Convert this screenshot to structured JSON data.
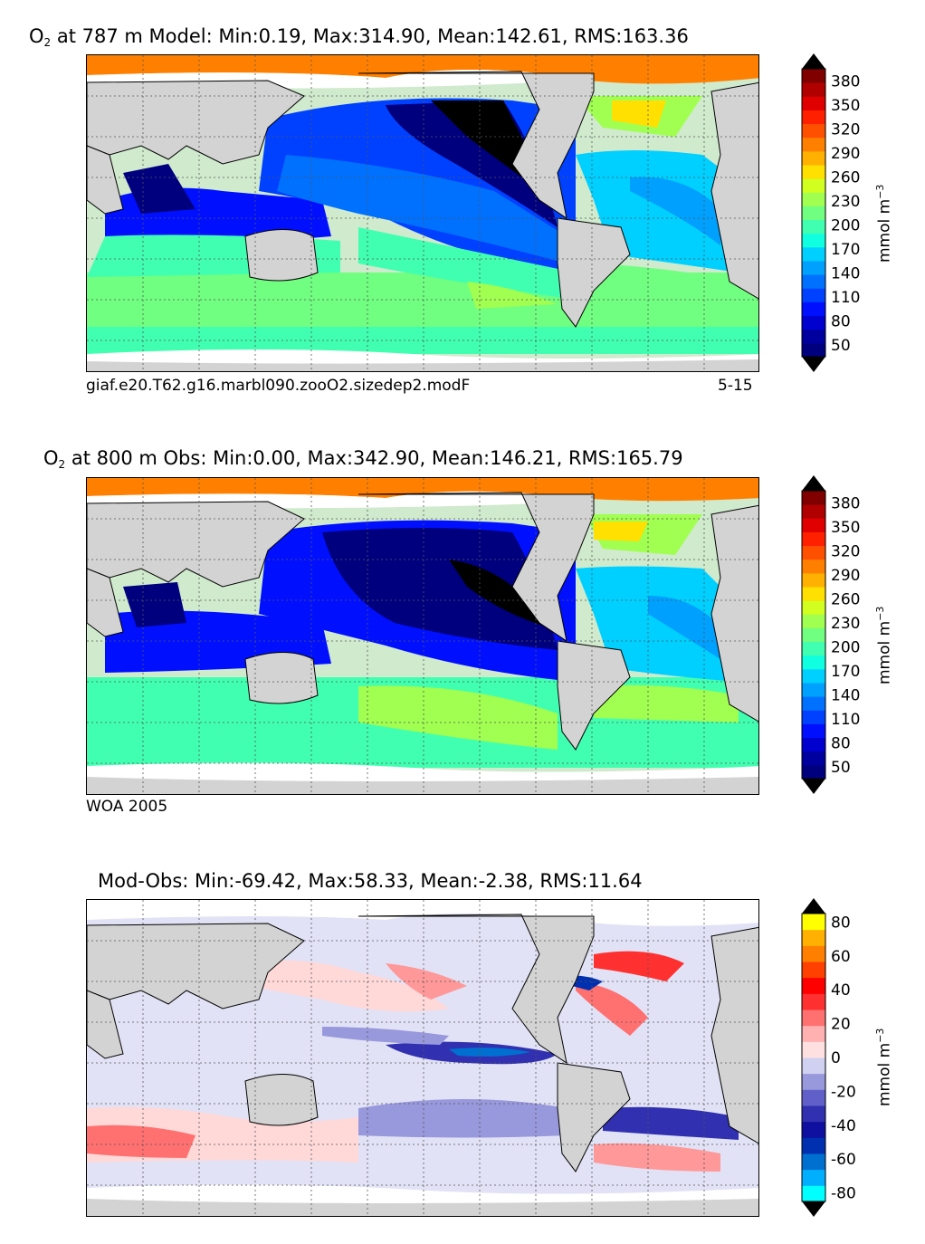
{
  "chart_data": [
    {
      "type": "heatmap",
      "panel": "model",
      "title_prefix": "O",
      "title_sub": "2",
      "title_rest": "at 787 m Model: Min:0.19, Max:314.90, Mean:142.61, RMS:163.36",
      "caption_left": "giaf.e20.T62.g16.marbl090.zooO2.sizedep2.modF",
      "caption_right": "5-15",
      "stats": {
        "min": 0.19,
        "max": 314.9,
        "mean": 142.61,
        "rms": 163.36
      },
      "depth_m": 787,
      "colorbar": {
        "ticks": [
          50,
          80,
          110,
          140,
          170,
          200,
          230,
          260,
          290,
          320,
          350,
          380
        ],
        "units": "mmol m",
        "units_sup": "−3",
        "levels": [
          35,
          50,
          65,
          80,
          95,
          110,
          125,
          140,
          155,
          170,
          185,
          200,
          215,
          230,
          245,
          260,
          275,
          290,
          305,
          320,
          335,
          350,
          365,
          380,
          395
        ],
        "colors": [
          "#00007f",
          "#00009f",
          "#0000cf",
          "#0010ff",
          "#0040ff",
          "#0070ff",
          "#00a0ff",
          "#00d0ff",
          "#10ffe0",
          "#40ffb0",
          "#70ff80",
          "#a0ff50",
          "#d0ff20",
          "#ffe000",
          "#ffb000",
          "#ff8000",
          "#ff5000",
          "#ff2000",
          "#e00000",
          "#b00000",
          "#800000"
        ],
        "extend": "both"
      }
    },
    {
      "type": "heatmap",
      "panel": "obs",
      "title_prefix": "O",
      "title_sub": "2",
      "title_rest": "at 800 m Obs: Min:0.00, Max:342.90, Mean:146.21, RMS:165.79",
      "caption_left": "WOA 2005",
      "stats": {
        "min": 0.0,
        "max": 342.9,
        "mean": 146.21,
        "rms": 165.79
      },
      "depth_m": 800,
      "colorbar": {
        "ticks": [
          50,
          80,
          110,
          140,
          170,
          200,
          230,
          260,
          290,
          320,
          350,
          380
        ],
        "units": "mmol m",
        "units_sup": "−3",
        "extend": "both"
      }
    },
    {
      "type": "heatmap",
      "panel": "diff",
      "title_rest": "Mod-Obs: Min:-69.42, Max:58.33, Mean:-2.38, RMS:11.64",
      "stats": {
        "min": -69.42,
        "max": 58.33,
        "mean": -2.38,
        "rms": 11.64
      },
      "colorbar": {
        "ticks": [
          -80,
          -60,
          -40,
          -20,
          0,
          20,
          40,
          60,
          80
        ],
        "units": "mmol m",
        "units_sup": "−3",
        "colors": [
          "#00ffff",
          "#00b0ff",
          "#0070d0",
          "#0030b0",
          "#1010a0",
          "#3030b0",
          "#6060c8",
          "#9898dc",
          "#d0d0f0",
          "#ffe0e0",
          "#ffb0b0",
          "#ff7070",
          "#ff3030",
          "#ff0000",
          "#ff4000",
          "#ff8000",
          "#ffb000",
          "#ffff00"
        ],
        "extend": "both"
      }
    }
  ]
}
